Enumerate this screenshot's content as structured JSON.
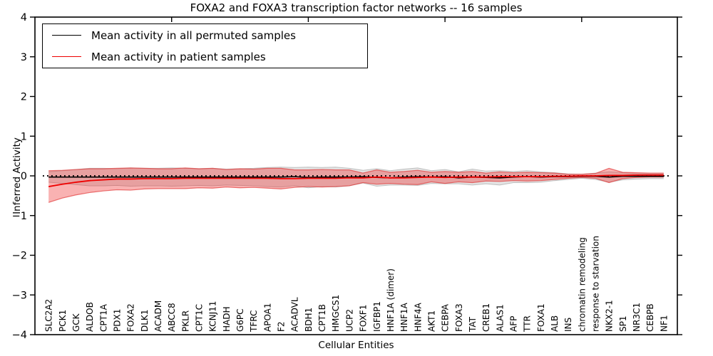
{
  "title": "FOXA2 and FOXA3 transcription factor networks -- 16 samples",
  "legend": {
    "items": [
      {
        "label": "Mean activity in all permuted samples",
        "color": "#000000"
      },
      {
        "label": "Mean activity in patient samples",
        "color": "#ee0000"
      }
    ]
  },
  "axes": {
    "ylabel": "Inferred Activity",
    "xlabel": "Cellular Entities",
    "y_ticks": [
      4,
      3,
      2,
      1,
      0,
      -1,
      -2,
      -3,
      -4
    ],
    "ylim": [
      -4,
      4
    ],
    "x_major_ticks": [
      10,
      20,
      30,
      40
    ]
  },
  "colors": {
    "permuted_line": "#000000",
    "patient_line": "#ee0000",
    "permuted_band_fill": "#000000",
    "permuted_band_opacity": 0.11,
    "permuted_band_edge": "#bfbfbf",
    "patient_band_fill": "#ee2222",
    "patient_band_opacity": 0.35,
    "patient_band_edge": "#e03030",
    "zero_line": "#000000",
    "frame": "#000000"
  },
  "chart_data": {
    "type": "line",
    "title": "FOXA2 and FOXA3 transcription factor networks -- 16 samples",
    "xlabel": "Cellular Entities",
    "ylabel": "Inferred Activity",
    "ylim": [
      -4,
      4
    ],
    "grid": false,
    "legend_position": "upper left",
    "zero_reference_line": "dotted",
    "categories": [
      "SLC2A2",
      "PCK1",
      "GCK",
      "ALDOB",
      "CPT1A",
      "PDX1",
      "FOXA2",
      "DLK1",
      "ACADM",
      "ABCC8",
      "PKLR",
      "CPT1C",
      "KCNJ11",
      "HADH",
      "G6PC",
      "TFRC",
      "APOA1",
      "F2",
      "ACADVL",
      "BDH1",
      "CPT1B",
      "HMGCS1",
      "UCP2",
      "FOXF1",
      "IGFBP1",
      "HNF1A (dimer)",
      "HNF1A",
      "HNF4A",
      "AKT1",
      "CEBPA",
      "FOXA3",
      "TAT",
      "CREB1",
      "ALAS1",
      "AFP",
      "TTR",
      "FOXA1",
      "ALB",
      "INS",
      "chromatin remodeling",
      "response to starvation",
      "NKX2-1",
      "SP1",
      "NR3C1",
      "CEBPB",
      "NF1"
    ],
    "series": [
      {
        "name": "Mean activity in all permuted samples",
        "color": "#000000",
        "values": [
          -0.03,
          -0.03,
          -0.03,
          -0.03,
          -0.03,
          -0.03,
          -0.03,
          -0.03,
          -0.03,
          -0.03,
          -0.03,
          -0.03,
          -0.03,
          -0.03,
          -0.03,
          -0.03,
          -0.03,
          -0.03,
          -0.02,
          -0.04,
          -0.03,
          -0.03,
          -0.03,
          -0.02,
          -0.04,
          -0.05,
          -0.03,
          -0.02,
          -0.03,
          -0.02,
          -0.05,
          -0.03,
          -0.04,
          -0.05,
          -0.03,
          -0.02,
          -0.03,
          -0.02,
          -0.02,
          -0.01,
          -0.01,
          -0.03,
          -0.01,
          -0.01,
          -0.01,
          -0.01
        ],
        "band_halfwidth": [
          0.13,
          0.16,
          0.19,
          0.22,
          0.22,
          0.21,
          0.23,
          0.22,
          0.22,
          0.23,
          0.22,
          0.21,
          0.22,
          0.2,
          0.21,
          0.22,
          0.24,
          0.25,
          0.23,
          0.26,
          0.24,
          0.25,
          0.22,
          0.16,
          0.22,
          0.18,
          0.2,
          0.22,
          0.16,
          0.18,
          0.15,
          0.2,
          0.16,
          0.18,
          0.14,
          0.15,
          0.13,
          0.1,
          0.07,
          0.05,
          0.08,
          0.13,
          0.09,
          0.07,
          0.06,
          0.06
        ]
      },
      {
        "name": "Mean activity in patient samples",
        "color": "#ee0000",
        "values": [
          -0.27,
          -0.21,
          -0.16,
          -0.12,
          -0.1,
          -0.08,
          -0.08,
          -0.07,
          -0.07,
          -0.07,
          -0.06,
          -0.06,
          -0.06,
          -0.06,
          -0.06,
          -0.06,
          -0.06,
          -0.07,
          -0.07,
          -0.06,
          -0.06,
          -0.06,
          -0.05,
          -0.05,
          -0.03,
          -0.05,
          -0.05,
          -0.04,
          -0.03,
          -0.04,
          -0.03,
          -0.03,
          -0.03,
          -0.02,
          -0.02,
          -0.02,
          -0.02,
          -0.01,
          -0.01,
          0.0,
          0.0,
          0.01,
          0.01,
          0.02,
          0.02,
          0.02
        ],
        "band_halfwidth": [
          0.4,
          0.35,
          0.32,
          0.3,
          0.28,
          0.27,
          0.28,
          0.26,
          0.25,
          0.25,
          0.26,
          0.24,
          0.25,
          0.22,
          0.24,
          0.23,
          0.25,
          0.26,
          0.22,
          0.21,
          0.22,
          0.21,
          0.2,
          0.12,
          0.18,
          0.14,
          0.16,
          0.18,
          0.12,
          0.15,
          0.12,
          0.14,
          0.1,
          0.12,
          0.1,
          0.11,
          0.1,
          0.08,
          0.05,
          0.04,
          0.06,
          0.18,
          0.08,
          0.06,
          0.05,
          0.05
        ]
      }
    ]
  }
}
